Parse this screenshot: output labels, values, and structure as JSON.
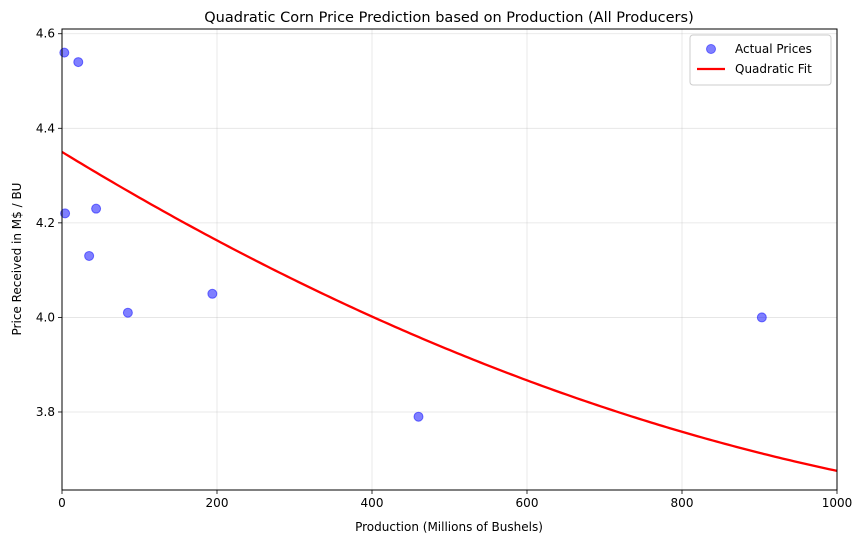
{
  "chart_data": {
    "type": "scatter",
    "title": "Quadratic Corn Price Prediction based on Production (All Producers)",
    "xlabel": "Production (Millions of Bushels)",
    "ylabel": "Price Received in M$ / BU",
    "xlim": [
      0,
      1000
    ],
    "ylim": [
      3.635,
      4.61
    ],
    "xticks": [
      0,
      200,
      400,
      600,
      800,
      1000
    ],
    "yticks": [
      3.8,
      4.0,
      4.2,
      4.4,
      4.6
    ],
    "xtick_labels": [
      "0",
      "200",
      "400",
      "600",
      "800",
      "1000"
    ],
    "ytick_labels": [
      "3.8",
      "4.0",
      "4.2",
      "4.4",
      "4.6"
    ],
    "grid": true,
    "legend_position": "top-right",
    "series": [
      {
        "name": "Actual Prices",
        "kind": "scatter",
        "color": "#0000ff",
        "points": [
          {
            "x": 3,
            "y": 4.56
          },
          {
            "x": 21,
            "y": 4.54
          },
          {
            "x": 4,
            "y": 4.22
          },
          {
            "x": 44,
            "y": 4.23
          },
          {
            "x": 35,
            "y": 4.13
          },
          {
            "x": 85,
            "y": 4.01
          },
          {
            "x": 194,
            "y": 4.05
          },
          {
            "x": 460,
            "y": 3.79
          },
          {
            "x": 903,
            "y": 4.0
          }
        ]
      },
      {
        "name": "Quadratic Fit",
        "kind": "line",
        "color": "#ff0000",
        "coefficients": {
          "a": 3.265e-07,
          "b": -0.001001,
          "c": 4.35
        }
      }
    ]
  }
}
